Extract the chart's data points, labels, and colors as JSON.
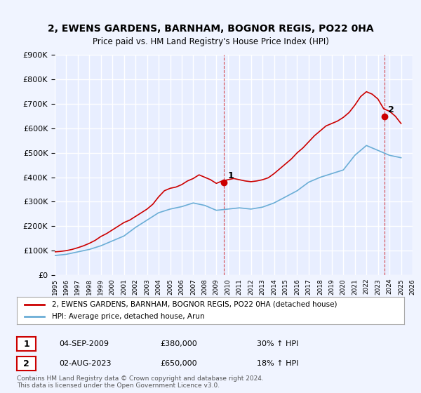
{
  "title": "2, EWENS GARDENS, BARNHAM, BOGNOR REGIS, PO22 0HA",
  "subtitle": "Price paid vs. HM Land Registry's House Price Index (HPI)",
  "legend_line1": "2, EWENS GARDENS, BARNHAM, BOGNOR REGIS, PO22 0HA (detached house)",
  "legend_line2": "HPI: Average price, detached house, Arun",
  "annotation1_label": "1",
  "annotation1_date": "04-SEP-2009",
  "annotation1_price": "£380,000",
  "annotation1_hpi": "30% ↑ HPI",
  "annotation2_label": "2",
  "annotation2_date": "02-AUG-2023",
  "annotation2_price": "£650,000",
  "annotation2_hpi": "18% ↑ HPI",
  "footer": "Contains HM Land Registry data © Crown copyright and database right 2024.\nThis data is licensed under the Open Government Licence v3.0.",
  "hpi_color": "#6baed6",
  "price_color": "#cc0000",
  "background_color": "#f0f4ff",
  "plot_bg_color": "#e8eeff",
  "grid_color": "#ffffff",
  "ylim": [
    0,
    900000
  ],
  "yticks": [
    0,
    100000,
    200000,
    300000,
    400000,
    500000,
    600000,
    700000,
    800000,
    900000
  ],
  "x_start_year": 1995,
  "x_end_year": 2026,
  "sale1_year": 2009.67,
  "sale1_price": 380000,
  "sale2_year": 2023.58,
  "sale2_price": 650000,
  "hpi_years": [
    1995,
    1996,
    1997,
    1998,
    1999,
    2000,
    2001,
    2002,
    2003,
    2004,
    2005,
    2006,
    2007,
    2008,
    2009,
    2010,
    2011,
    2012,
    2013,
    2014,
    2015,
    2016,
    2017,
    2018,
    2019,
    2020,
    2021,
    2022,
    2023,
    2024,
    2025
  ],
  "hpi_values": [
    80000,
    85000,
    95000,
    105000,
    120000,
    140000,
    160000,
    195000,
    225000,
    255000,
    270000,
    280000,
    295000,
    285000,
    265000,
    270000,
    275000,
    270000,
    278000,
    295000,
    320000,
    345000,
    380000,
    400000,
    415000,
    430000,
    490000,
    530000,
    510000,
    490000,
    480000
  ],
  "price_years": [
    1995,
    1995.5,
    1996,
    1996.5,
    1997,
    1997.5,
    1998,
    1998.5,
    1999,
    1999.5,
    2000,
    2000.5,
    2001,
    2001.5,
    2002,
    2002.5,
    2003,
    2003.5,
    2004,
    2004.5,
    2005,
    2005.5,
    2006,
    2006.5,
    2007,
    2007.5,
    2008,
    2008.5,
    2009,
    2009.5,
    2010,
    2010.5,
    2011,
    2011.5,
    2012,
    2012.5,
    2013,
    2013.5,
    2014,
    2014.5,
    2015,
    2015.5,
    2016,
    2016.5,
    2017,
    2017.5,
    2018,
    2018.5,
    2019,
    2019.5,
    2020,
    2020.5,
    2021,
    2021.5,
    2022,
    2022.5,
    2023,
    2023.5,
    2024,
    2024.5,
    2025
  ],
  "price_values": [
    95000,
    97000,
    100000,
    105000,
    112000,
    120000,
    130000,
    142000,
    158000,
    170000,
    185000,
    200000,
    215000,
    225000,
    240000,
    255000,
    270000,
    290000,
    320000,
    345000,
    355000,
    360000,
    370000,
    385000,
    395000,
    410000,
    400000,
    390000,
    375000,
    385000,
    390000,
    395000,
    390000,
    385000,
    382000,
    385000,
    390000,
    398000,
    415000,
    435000,
    455000,
    475000,
    500000,
    520000,
    545000,
    570000,
    590000,
    610000,
    620000,
    630000,
    645000,
    665000,
    695000,
    730000,
    750000,
    740000,
    720000,
    680000,
    670000,
    650000,
    620000
  ]
}
